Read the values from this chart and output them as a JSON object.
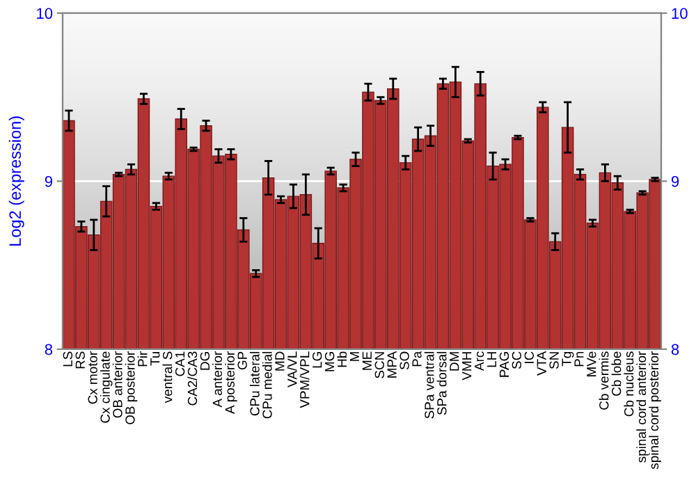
{
  "chart_data": {
    "type": "bar",
    "ylabel": "Log2 (expression)",
    "categories": [
      "LS",
      "RS",
      "Cx motor",
      "Cx cingulate",
      "OB anterior",
      "OB posterior",
      "Pir",
      "Tu",
      "ventral S",
      "CA1",
      "CA2/CA3",
      "DG",
      "A anterior",
      "A posterior",
      "GP",
      "CPu lateral",
      "CPu medial",
      "MD",
      "VA/VL",
      "VPM/VPL",
      "LG",
      "MG",
      "Hb",
      "M",
      "ME",
      "SCN",
      "MPA",
      "SO",
      "Pa",
      "SPa ventral",
      "SPa dorsal",
      "DM",
      "VMH",
      "Arc",
      "LH",
      "PAG",
      "SC",
      "IC",
      "VTA",
      "SN",
      "Tg",
      "Pn",
      "MVe",
      "Cb vermis",
      "Cb lobe",
      "Cb nucleus",
      "spinal cord anterior",
      "spinal cord posterior"
    ],
    "series": [
      {
        "color": "#b33232",
        "values": [
          9.36,
          8.73,
          8.68,
          8.88,
          9.04,
          9.07,
          9.49,
          8.85,
          9.03,
          9.37,
          9.19,
          9.33,
          9.15,
          9.16,
          8.71,
          8.45,
          9.02,
          8.89,
          8.91,
          8.92,
          8.63,
          9.06,
          8.96,
          9.13,
          9.53,
          9.48,
          9.55,
          9.11,
          9.25,
          9.27,
          9.58,
          9.59,
          9.24,
          9.58,
          9.09,
          9.1,
          9.26,
          8.77,
          9.44,
          8.64,
          9.32,
          9.04,
          8.75,
          9.05,
          8.99,
          8.82,
          8.93,
          9.01
        ],
        "errors": [
          0.06,
          0.03,
          0.09,
          0.09,
          0.01,
          0.03,
          0.03,
          0.02,
          0.02,
          0.06,
          0.01,
          0.03,
          0.04,
          0.03,
          0.07,
          0.02,
          0.1,
          0.02,
          0.07,
          0.12,
          0.09,
          0.02,
          0.02,
          0.04,
          0.05,
          0.02,
          0.06,
          0.04,
          0.07,
          0.06,
          0.03,
          0.09,
          0.01,
          0.07,
          0.08,
          0.03,
          0.01,
          0.01,
          0.03,
          0.05,
          0.15,
          0.03,
          0.02,
          0.05,
          0.04,
          0.01,
          0.01,
          0.01
        ]
      }
    ],
    "ylim": [
      8,
      10
    ],
    "yticks": [
      8,
      9,
      10
    ],
    "y2lim": [
      8,
      10
    ],
    "y2ticks": [
      8,
      9,
      10
    ],
    "grid": "y"
  }
}
